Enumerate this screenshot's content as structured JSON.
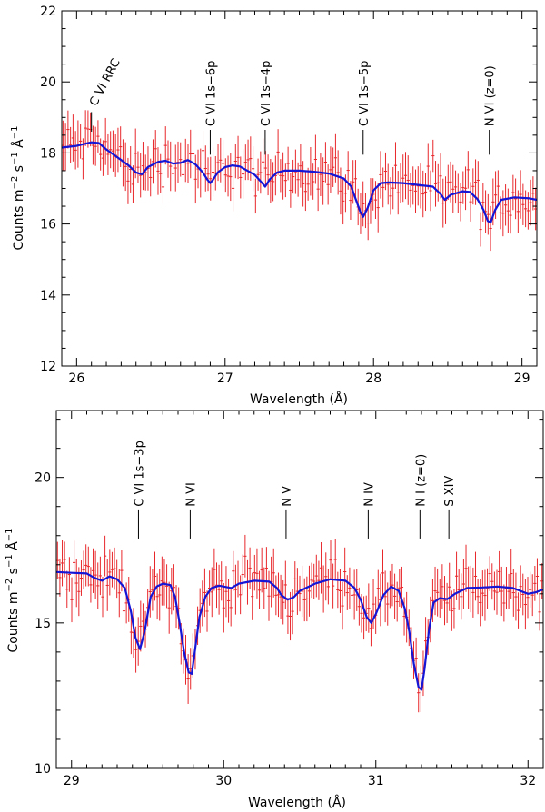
{
  "chart_data": [
    {
      "type": "scatter",
      "panel": "top",
      "xlabel": "Wavelength (Å)",
      "ylabel_parts": [
        "Counts m",
        "−2",
        " s",
        "−1",
        " Å",
        "−1"
      ],
      "xlim": [
        25.9,
        29.1
      ],
      "ylim": [
        12,
        22
      ],
      "xticks": [
        26,
        27,
        28,
        29
      ],
      "yticks": [
        12,
        14,
        16,
        18,
        20,
        22
      ],
      "xminor_step": 0.1,
      "yminor_step": 0.5,
      "colors": {
        "data": "#e8272b",
        "model": "#1515d6"
      },
      "lines": [
        {
          "label": "C VI RRC",
          "x": 26.1,
          "tick_top": 18.6,
          "tick_bottom": 19.15,
          "text_y": 19.3,
          "slanted": true
        },
        {
          "label": "C VI 1s−6p",
          "x": 26.9,
          "tick_top": 17.95,
          "tick_bottom": 18.65,
          "text_y": 18.75
        },
        {
          "label": "C VI 1s−4p",
          "x": 27.27,
          "tick_top": 17.95,
          "tick_bottom": 18.65,
          "text_y": 18.75
        },
        {
          "label": "C VI 1s−5p",
          "x": 27.93,
          "tick_top": 17.95,
          "tick_bottom": 18.65,
          "text_y": 18.75
        },
        {
          "label": "N VI (z=0)",
          "x": 28.78,
          "tick_top": 17.95,
          "tick_bottom": 18.65,
          "text_y": 18.75
        }
      ],
      "model": {
        "x": [
          25.9,
          26.0,
          26.05,
          26.1,
          26.15,
          26.2,
          26.25,
          26.3,
          26.35,
          26.4,
          26.44,
          26.48,
          26.55,
          26.6,
          26.65,
          26.7,
          26.75,
          26.8,
          26.85,
          26.88,
          26.9,
          26.92,
          26.95,
          27.0,
          27.05,
          27.1,
          27.15,
          27.2,
          27.24,
          27.27,
          27.3,
          27.35,
          27.4,
          27.5,
          27.6,
          27.7,
          27.8,
          27.85,
          27.88,
          27.91,
          27.93,
          27.96,
          28.0,
          28.05,
          28.1,
          28.2,
          28.3,
          28.4,
          28.45,
          28.48,
          28.52,
          28.6,
          28.65,
          28.7,
          28.74,
          28.77,
          28.79,
          28.82,
          28.86,
          28.95,
          29.05,
          29.1
        ],
        "y": [
          18.15,
          18.2,
          18.25,
          18.3,
          18.28,
          18.1,
          17.95,
          17.8,
          17.65,
          17.45,
          17.4,
          17.6,
          17.75,
          17.78,
          17.7,
          17.72,
          17.8,
          17.68,
          17.45,
          17.25,
          17.15,
          17.25,
          17.45,
          17.6,
          17.65,
          17.62,
          17.5,
          17.38,
          17.2,
          17.05,
          17.25,
          17.45,
          17.5,
          17.5,
          17.47,
          17.42,
          17.28,
          17.05,
          16.7,
          16.35,
          16.2,
          16.45,
          16.95,
          17.15,
          17.17,
          17.15,
          17.1,
          17.05,
          16.85,
          16.68,
          16.82,
          16.92,
          16.9,
          16.7,
          16.4,
          16.08,
          16.05,
          16.4,
          16.68,
          16.75,
          16.72,
          16.68
        ]
      },
      "data_summary": "≈190 points with 1σ error bars, scattered ±0.6 around the model"
    },
    {
      "type": "scatter",
      "panel": "bottom",
      "xlabel": "Wavelength (Å)",
      "ylabel_parts": [
        "Counts m",
        "−2",
        " s",
        "−1",
        " Å",
        "−1"
      ],
      "xlim": [
        28.9,
        32.1
      ],
      "ylim": [
        10,
        22.3
      ],
      "xticks": [
        29,
        30,
        31,
        32
      ],
      "yticks": [
        10,
        15,
        20
      ],
      "xminor_step": 0.1,
      "yminor_step": 1,
      "colors": {
        "data": "#e8272b",
        "model": "#1515d6"
      },
      "lines": [
        {
          "label": "C VI 1s−3p",
          "x": 29.44,
          "tick_top": 17.9,
          "tick_bottom": 18.9,
          "text_y": 19.0
        },
        {
          "label": "N VI",
          "x": 29.78,
          "tick_top": 17.9,
          "tick_bottom": 18.9,
          "text_y": 19.0
        },
        {
          "label": "N V",
          "x": 30.41,
          "tick_top": 17.9,
          "tick_bottom": 18.9,
          "text_y": 19.0
        },
        {
          "label": "N IV",
          "x": 30.95,
          "tick_top": 17.9,
          "tick_bottom": 18.9,
          "text_y": 19.0
        },
        {
          "label": "N I (z=0)",
          "x": 31.29,
          "tick_top": 17.9,
          "tick_bottom": 18.9,
          "text_y": 19.0
        },
        {
          "label": "S XIV",
          "x": 31.48,
          "tick_top": 17.9,
          "tick_bottom": 18.9,
          "text_y": 19.0
        }
      ],
      "model": {
        "x": [
          28.9,
          29.0,
          29.1,
          29.15,
          29.2,
          29.25,
          29.3,
          29.35,
          29.39,
          29.42,
          29.45,
          29.48,
          29.52,
          29.56,
          29.6,
          29.65,
          29.68,
          29.71,
          29.74,
          29.77,
          29.79,
          29.81,
          29.84,
          29.88,
          29.92,
          29.97,
          30.05,
          30.1,
          30.15,
          30.2,
          30.3,
          30.35,
          30.38,
          30.42,
          30.46,
          30.5,
          30.6,
          30.7,
          30.8,
          30.86,
          30.9,
          30.94,
          30.97,
          31.0,
          31.05,
          31.1,
          31.15,
          31.19,
          31.22,
          31.25,
          31.28,
          31.3,
          31.32,
          31.35,
          31.38,
          31.42,
          31.47,
          31.52,
          31.6,
          31.7,
          31.8,
          31.9,
          32.0,
          32.05,
          32.1
        ],
        "y": [
          16.75,
          16.72,
          16.7,
          16.55,
          16.45,
          16.6,
          16.5,
          16.2,
          15.4,
          14.5,
          14.1,
          14.7,
          15.9,
          16.25,
          16.35,
          16.3,
          15.9,
          15.0,
          14.0,
          13.3,
          13.25,
          14.0,
          15.2,
          15.9,
          16.2,
          16.28,
          16.2,
          16.35,
          16.4,
          16.45,
          16.42,
          16.2,
          15.95,
          15.8,
          15.88,
          16.1,
          16.35,
          16.5,
          16.45,
          16.2,
          15.8,
          15.2,
          15.0,
          15.3,
          15.95,
          16.25,
          16.1,
          15.5,
          14.7,
          13.6,
          12.8,
          12.7,
          13.4,
          14.8,
          15.7,
          15.85,
          15.82,
          16.0,
          16.2,
          16.22,
          16.25,
          16.2,
          16.0,
          16.05,
          16.15
        ]
      },
      "data_summary": "≈200 points with 1σ error bars, scattered ±0.7 around the model"
    }
  ]
}
